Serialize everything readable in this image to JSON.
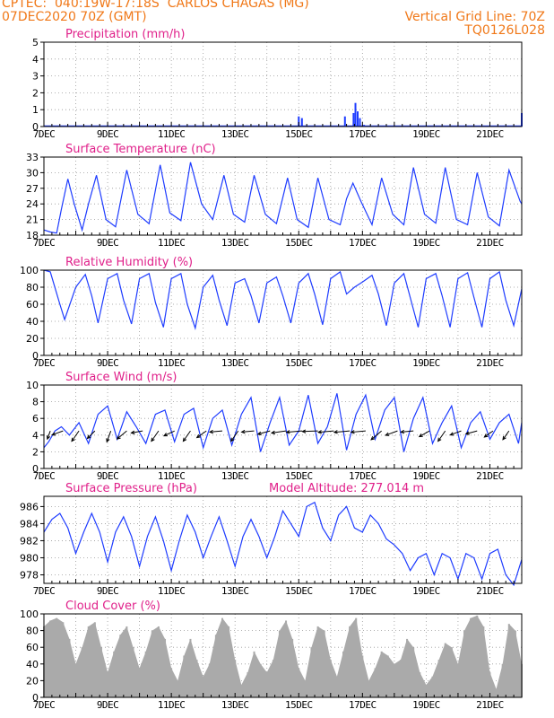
{
  "header": {
    "line1_left": "CPTEC:  040:19W-17:18S  CARLOS CHAGAS (MG)",
    "line2_left": "07DEC2020 70Z (GMT)",
    "line2_right": "Vertical Grid Line: 70Z",
    "line3_right": "TQ0126L028"
  },
  "colors": {
    "header": "#f07818",
    "title": "#e0208a",
    "series": "#1e3cff",
    "cloud": "#aaaaaa",
    "wind_arrow": "#000000"
  },
  "x_axis": {
    "tick_labels": [
      "7DEC",
      "9DEC",
      "11DEC",
      "13DEC",
      "15DEC",
      "17DEC",
      "19DEC",
      "21DEC"
    ],
    "tick_days": [
      7,
      9,
      11,
      13,
      15,
      17,
      19,
      21
    ],
    "range_days": [
      7,
      22
    ],
    "vertical_grid": "daily"
  },
  "chart_data": [
    {
      "type": "bar",
      "title": "Precipitation (mm/h)",
      "ylim": [
        0,
        5
      ],
      "yticks": [
        0,
        1,
        2,
        3,
        4,
        5
      ],
      "x": [
        15.0,
        15.1,
        16.45,
        16.72,
        16.78,
        16.85,
        16.92,
        17.05,
        22.0
      ],
      "values": [
        0.6,
        0.5,
        0.6,
        0.8,
        1.4,
        0.9,
        0.5,
        0.1,
        0.8
      ]
    },
    {
      "type": "line",
      "title": "Surface Temperature (nC)",
      "ylim": [
        18,
        33
      ],
      "yticks": [
        18,
        21,
        24,
        27,
        30,
        33
      ],
      "x": [
        7.0,
        7.2,
        7.4,
        7.55,
        7.75,
        7.95,
        8.2,
        8.4,
        8.65,
        8.95,
        9.25,
        9.6,
        9.95,
        10.3,
        10.65,
        10.95,
        11.3,
        11.6,
        11.95,
        12.3,
        12.65,
        12.95,
        13.3,
        13.6,
        13.95,
        14.3,
        14.65,
        14.95,
        15.3,
        15.6,
        15.95,
        16.3,
        16.5,
        16.7,
        16.95,
        17.3,
        17.6,
        17.95,
        18.3,
        18.6,
        18.95,
        19.3,
        19.6,
        19.95,
        20.3,
        20.6,
        20.95,
        21.3,
        21.6,
        21.95,
        22.0
      ],
      "values": [
        19.0,
        18.6,
        18.4,
        23.0,
        28.8,
        24.0,
        19.0,
        24.0,
        29.5,
        21.0,
        19.6,
        30.5,
        22.0,
        20.2,
        31.5,
        22.3,
        20.8,
        32.0,
        24.0,
        21.0,
        29.5,
        22.0,
        20.5,
        29.5,
        22.0,
        20.2,
        29.0,
        21.0,
        19.5,
        29.0,
        21.0,
        20.0,
        25.0,
        28.0,
        24.5,
        20.0,
        29.0,
        22.0,
        20.0,
        31.0,
        22.0,
        20.3,
        31.0,
        21.0,
        20.0,
        30.0,
        21.5,
        19.8,
        30.5,
        24.5,
        24.0
      ]
    },
    {
      "type": "line",
      "title": "Relative Humidity (%)",
      "ylim": [
        0,
        100
      ],
      "yticks": [
        0,
        20,
        40,
        60,
        80,
        100
      ],
      "x": [
        7.0,
        7.2,
        7.5,
        7.65,
        8.0,
        8.3,
        8.5,
        8.7,
        9.0,
        9.3,
        9.5,
        9.75,
        10.0,
        10.3,
        10.5,
        10.75,
        11.0,
        11.3,
        11.5,
        11.75,
        12.0,
        12.3,
        12.5,
        12.75,
        13.0,
        13.3,
        13.5,
        13.75,
        14.0,
        14.3,
        14.5,
        14.75,
        15.0,
        15.3,
        15.5,
        15.75,
        16.0,
        16.3,
        16.5,
        16.75,
        17.0,
        17.3,
        17.5,
        17.75,
        18.0,
        18.3,
        18.5,
        18.75,
        19.0,
        19.3,
        19.5,
        19.75,
        20.0,
        20.3,
        20.5,
        20.75,
        21.0,
        21.3,
        21.5,
        21.75,
        22.0
      ],
      "values": [
        100,
        98,
        60,
        42,
        80,
        95,
        70,
        38,
        90,
        96,
        65,
        37,
        90,
        96,
        62,
        33,
        90,
        96,
        60,
        32,
        80,
        94,
        65,
        35,
        85,
        90,
        70,
        38,
        85,
        92,
        70,
        38,
        85,
        96,
        72,
        36,
        90,
        98,
        72,
        80,
        86,
        94,
        72,
        35,
        85,
        96,
        68,
        33,
        90,
        96,
        70,
        33,
        90,
        97,
        68,
        33,
        90,
        98,
        65,
        35,
        78
      ]
    },
    {
      "type": "line",
      "title": "Surface Wind (m/s)",
      "ylim": [
        0,
        10
      ],
      "yticks": [
        0,
        2,
        4,
        6,
        8,
        10
      ],
      "x": [
        7.0,
        7.15,
        7.35,
        7.55,
        7.8,
        8.1,
        8.4,
        8.7,
        9.0,
        9.3,
        9.6,
        9.9,
        10.2,
        10.5,
        10.8,
        11.1,
        11.4,
        11.7,
        12.0,
        12.3,
        12.6,
        12.9,
        13.2,
        13.5,
        13.8,
        14.1,
        14.4,
        14.7,
        15.0,
        15.3,
        15.6,
        15.9,
        16.2,
        16.5,
        16.8,
        17.1,
        17.4,
        17.7,
        18.0,
        18.3,
        18.6,
        18.9,
        19.2,
        19.5,
        19.8,
        20.1,
        20.4,
        20.7,
        21.0,
        21.3,
        21.6,
        21.9,
        22.0
      ],
      "values": [
        2.5,
        3.2,
        4.5,
        5.0,
        4.0,
        5.5,
        3.0,
        6.5,
        7.5,
        3.5,
        6.8,
        5.0,
        3.0,
        6.5,
        7.0,
        3.2,
        6.5,
        7.2,
        2.5,
        6.0,
        7.0,
        2.8,
        6.5,
        8.5,
        2.0,
        5.5,
        8.5,
        2.8,
        4.5,
        8.8,
        3.0,
        5.0,
        9.0,
        2.2,
        6.5,
        8.8,
        3.5,
        7.0,
        8.5,
        2.0,
        6.0,
        8.5,
        3.0,
        5.5,
        7.5,
        2.5,
        5.5,
        6.8,
        3.5,
        5.5,
        6.5,
        3.0,
        5.5
      ],
      "arrows": [
        {
          "x": 7.2,
          "speed": 3.0,
          "dir": 200
        },
        {
          "x": 7.6,
          "speed": 4.5,
          "dir": 250
        },
        {
          "x": 8.1,
          "speed": 5.0,
          "dir": 215
        },
        {
          "x": 8.6,
          "speed": 4.0,
          "dir": 225
        },
        {
          "x": 9.1,
          "speed": 4.5,
          "dir": 200
        },
        {
          "x": 9.6,
          "speed": 5.0,
          "dir": 230
        },
        {
          "x": 10.1,
          "speed": 4.5,
          "dir": 260
        },
        {
          "x": 10.6,
          "speed": 5.0,
          "dir": 215
        },
        {
          "x": 11.1,
          "speed": 4.5,
          "dir": 245
        },
        {
          "x": 11.6,
          "speed": 5.0,
          "dir": 215
        },
        {
          "x": 12.1,
          "speed": 4.5,
          "dir": 235
        },
        {
          "x": 12.6,
          "speed": 5.0,
          "dir": 265
        },
        {
          "x": 13.1,
          "speed": 5.0,
          "dir": 215
        },
        {
          "x": 13.6,
          "speed": 5.0,
          "dir": 265
        },
        {
          "x": 14.1,
          "speed": 5.0,
          "dir": 255
        },
        {
          "x": 14.6,
          "speed": 6.0,
          "dir": 262
        },
        {
          "x": 15.1,
          "speed": 6.5,
          "dir": 265
        },
        {
          "x": 15.6,
          "speed": 6.5,
          "dir": 268
        },
        {
          "x": 16.1,
          "speed": 6.5,
          "dir": 265
        },
        {
          "x": 16.6,
          "speed": 6.5,
          "dir": 265
        },
        {
          "x": 17.1,
          "speed": 6.0,
          "dir": 265
        },
        {
          "x": 17.6,
          "speed": 5.5,
          "dir": 230
        },
        {
          "x": 18.1,
          "speed": 5.0,
          "dir": 250
        },
        {
          "x": 18.6,
          "speed": 5.0,
          "dir": 265
        },
        {
          "x": 19.1,
          "speed": 4.5,
          "dir": 240
        },
        {
          "x": 19.6,
          "speed": 5.0,
          "dir": 215
        },
        {
          "x": 20.1,
          "speed": 4.5,
          "dir": 250
        },
        {
          "x": 20.6,
          "speed": 4.5,
          "dir": 255
        },
        {
          "x": 21.1,
          "speed": 4.0,
          "dir": 235
        },
        {
          "x": 21.6,
          "speed": 4.0,
          "dir": 215
        }
      ]
    },
    {
      "type": "line",
      "title": "Surface Pressure (hPa)",
      "annotation": "Model Altitude: 277.014  m",
      "ylim": [
        977,
        987.2
      ],
      "yticks": [
        978,
        980,
        982,
        984,
        986
      ],
      "x": [
        7.0,
        7.25,
        7.5,
        7.75,
        8.0,
        8.25,
        8.5,
        8.75,
        9.0,
        9.25,
        9.5,
        9.75,
        10.0,
        10.25,
        10.5,
        10.75,
        11.0,
        11.25,
        11.5,
        11.75,
        12.0,
        12.25,
        12.5,
        12.75,
        13.0,
        13.25,
        13.5,
        13.75,
        14.0,
        14.25,
        14.5,
        14.75,
        15.0,
        15.25,
        15.5,
        15.75,
        16.0,
        16.25,
        16.5,
        16.75,
        17.0,
        17.25,
        17.5,
        17.75,
        18.0,
        18.25,
        18.5,
        18.75,
        19.0,
        19.25,
        19.5,
        19.75,
        20.0,
        20.25,
        20.5,
        20.75,
        21.0,
        21.25,
        21.5,
        21.75,
        22.0
      ],
      "values": [
        983.0,
        984.5,
        985.2,
        983.5,
        980.5,
        983.0,
        985.2,
        983.0,
        979.5,
        983.0,
        984.8,
        982.5,
        979.0,
        982.5,
        984.8,
        982.0,
        978.5,
        982.0,
        985.0,
        983.0,
        980.0,
        982.5,
        984.8,
        982.0,
        979.0,
        982.5,
        984.5,
        982.5,
        980.0,
        982.5,
        985.5,
        984.0,
        982.5,
        986.0,
        986.5,
        983.5,
        982.0,
        985.0,
        986.0,
        983.5,
        983.0,
        985.0,
        984.0,
        982.2,
        981.5,
        980.5,
        978.5,
        980.0,
        980.5,
        978.0,
        980.5,
        980.0,
        977.5,
        980.5,
        980.0,
        977.5,
        980.5,
        981.0,
        978.0,
        976.8,
        979.8
      ]
    },
    {
      "type": "bar",
      "title": "Cloud Cover (%)",
      "ylim": [
        0,
        100
      ],
      "yticks": [
        0,
        20,
        40,
        60,
        80,
        100
      ],
      "x": [
        7.0,
        7.2,
        7.4,
        7.6,
        7.8,
        8.0,
        8.2,
        8.4,
        8.6,
        8.8,
        9.0,
        9.2,
        9.4,
        9.6,
        9.8,
        10.0,
        10.2,
        10.4,
        10.6,
        10.8,
        11.0,
        11.2,
        11.4,
        11.6,
        11.8,
        12.0,
        12.2,
        12.4,
        12.6,
        12.8,
        13.0,
        13.2,
        13.4,
        13.6,
        13.8,
        14.0,
        14.2,
        14.4,
        14.6,
        14.8,
        15.0,
        15.2,
        15.4,
        15.6,
        15.8,
        16.0,
        16.2,
        16.4,
        16.6,
        16.8,
        17.0,
        17.2,
        17.4,
        17.6,
        17.8,
        18.0,
        18.2,
        18.4,
        18.6,
        18.8,
        19.0,
        19.2,
        19.4,
        19.6,
        19.8,
        20.0,
        20.2,
        20.4,
        20.6,
        20.8,
        21.0,
        21.2,
        21.4,
        21.6,
        21.8,
        22.0
      ],
      "values": [
        85,
        92,
        95,
        90,
        70,
        40,
        60,
        85,
        90,
        60,
        30,
        55,
        75,
        85,
        60,
        35,
        55,
        80,
        85,
        70,
        35,
        20,
        50,
        70,
        45,
        25,
        40,
        75,
        95,
        85,
        45,
        15,
        30,
        55,
        40,
        30,
        45,
        80,
        92,
        70,
        35,
        20,
        60,
        85,
        80,
        45,
        25,
        55,
        85,
        95,
        50,
        20,
        35,
        55,
        50,
        40,
        45,
        70,
        60,
        30,
        15,
        25,
        45,
        65,
        60,
        40,
        80,
        95,
        98,
        85,
        30,
        10,
        40,
        88,
        80,
        40
      ]
    }
  ]
}
